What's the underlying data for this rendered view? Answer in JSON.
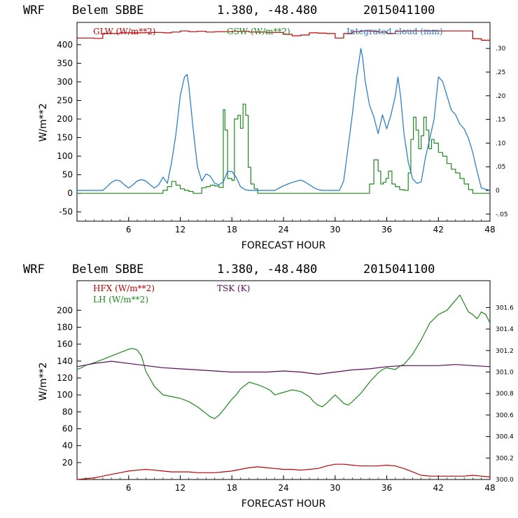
{
  "charts": [
    {
      "title_model": "WRF",
      "title_station": "Belem SBBE",
      "title_coords": "1.380, -48.480",
      "title_date": "2015041100",
      "legend": [
        {
          "label": "GLW (W/m**2)",
          "color": "#c00000"
        },
        {
          "label": "GSW (W/m**2)",
          "color": "#1f8a1f"
        },
        {
          "label": "Integrated cloud (mm)",
          "color": "#1e78d0"
        }
      ],
      "ylabel": "W/m**2",
      "xlabel": "FORECAST HOUR",
      "x_ticks": [
        "6",
        "12",
        "18",
        "24",
        "30",
        "36",
        "42",
        "48"
      ],
      "y_ticks": [
        "-50",
        "0",
        "50",
        "100",
        "150",
        "200",
        "250",
        "300",
        "350",
        "400"
      ],
      "y2_ticks": [
        "-.05",
        "0",
        ".05",
        ".10",
        ".15",
        ".20",
        ".25",
        ".30"
      ]
    },
    {
      "title_model": "WRF",
      "title_station": "Belem SBBE",
      "title_coords": "1.380, -48.480",
      "title_date": "2015041100",
      "legend": [
        {
          "label": "HFX (W/m**2)",
          "color": "#c00000"
        },
        {
          "label": "LH  (W/m**2)",
          "color": "#1f8a1f"
        },
        {
          "label": "TSK (K)",
          "color": "#5a0a5a"
        }
      ],
      "ylabel": "W/m**2",
      "xlabel": "FORECAST HOUR",
      "x_ticks": [
        "6",
        "12",
        "18",
        "24",
        "30",
        "36",
        "42",
        "48"
      ],
      "y_ticks": [
        "20",
        "40",
        "60",
        "80",
        "100",
        "120",
        "140",
        "160",
        "180",
        "200"
      ],
      "y2_ticks": [
        "300.0",
        "300.2",
        "300.4",
        "300.6",
        "300.8",
        "301.0",
        "301.2",
        "301.4",
        "301.6"
      ]
    }
  ],
  "chart_data": [
    {
      "type": "line",
      "title": "WRF Belem SBBE 1.380, -48.480 2015041100",
      "xlabel": "FORECAST HOUR",
      "ylabel": "W/m**2",
      "xlim": [
        0,
        48
      ],
      "ylim": [
        -75,
        460
      ],
      "y2lim": [
        -0.065,
        0.355
      ],
      "series": [
        {
          "name": "GLW (W/m**2)",
          "axis": "left",
          "color": "#c00000",
          "step": true,
          "x": [
            0,
            1,
            2,
            3,
            5,
            8,
            10,
            11,
            12,
            13,
            14,
            15,
            16,
            18,
            20,
            22,
            24,
            25,
            26,
            27,
            28,
            29,
            30,
            31,
            32,
            33,
            34,
            35,
            36,
            37,
            38,
            39,
            40,
            42,
            44,
            45,
            46,
            47,
            48
          ],
          "y": [
            418,
            418,
            417,
            430,
            432,
            433,
            432,
            434,
            437,
            435,
            436,
            434,
            435,
            436,
            434,
            433,
            428,
            424,
            426,
            432,
            431,
            430,
            418,
            430,
            435,
            437,
            436,
            434,
            430,
            436,
            437,
            437,
            437,
            437,
            437,
            437,
            416,
            412,
            411
          ]
        },
        {
          "name": "GSW (W/m**2)",
          "axis": "left",
          "color": "#1f8a1f",
          "step": true,
          "x": [
            0,
            9.5,
            10,
            10.5,
            11,
            11.5,
            12,
            12.5,
            13,
            13.5,
            14,
            14.5,
            15,
            15.5,
            16,
            16.5,
            17,
            17.2,
            17.5,
            18,
            18.3,
            18.7,
            19,
            19.3,
            19.6,
            19.9,
            20.2,
            20.6,
            21,
            21.5,
            33,
            33.5,
            34,
            34.5,
            35,
            35.3,
            35.6,
            35.9,
            36.2,
            36.6,
            37,
            37.5,
            38,
            38.5,
            38.8,
            39.1,
            39.4,
            39.7,
            40,
            40.3,
            40.6,
            40.9,
            41.2,
            41.5,
            42,
            42.5,
            43,
            43.5,
            44,
            44.5,
            45,
            45.5,
            46,
            48
          ],
          "y": [
            0,
            0,
            8,
            18,
            32,
            22,
            12,
            8,
            5,
            0,
            0,
            15,
            18,
            22,
            20,
            16,
            225,
            170,
            40,
            35,
            200,
            210,
            175,
            240,
            210,
            70,
            25,
            12,
            0,
            0,
            0,
            0,
            25,
            90,
            60,
            25,
            30,
            40,
            60,
            25,
            18,
            10,
            8,
            55,
            145,
            205,
            170,
            120,
            155,
            205,
            170,
            120,
            145,
            135,
            110,
            100,
            80,
            65,
            55,
            40,
            25,
            10,
            0,
            0
          ]
        },
        {
          "name": "Integrated cloud (mm)",
          "axis": "right",
          "color": "#1e78d0",
          "step": false,
          "x": [
            0,
            1,
            2,
            2.5,
            3,
            3.5,
            4,
            4.5,
            5,
            5.5,
            6,
            6.5,
            7,
            7.5,
            8,
            8.5,
            9,
            9.5,
            10,
            10.5,
            11,
            11.5,
            12,
            12.5,
            12.8,
            13,
            13.5,
            14,
            14.5,
            15,
            15.5,
            16,
            16.5,
            17,
            17.5,
            18,
            18.5,
            19,
            19.5,
            20,
            21,
            22,
            23,
            24,
            25,
            26,
            26.5,
            27,
            27.5,
            28,
            28.5,
            29,
            30,
            30.5,
            31,
            31.5,
            32,
            32.5,
            33,
            33.2,
            33.5,
            34,
            34.5,
            35,
            35.5,
            36,
            36.5,
            37,
            37.3,
            37.6,
            38,
            38.5,
            39,
            39.5,
            40,
            40.5,
            41,
            41.5,
            42,
            42.5,
            43,
            43.5,
            44,
            44.5,
            45,
            45.5,
            46,
            46.5,
            47,
            48
          ],
          "y": [
            0,
            0,
            0,
            0,
            0,
            0.008,
            0.017,
            0.022,
            0.02,
            0.012,
            0.005,
            0.012,
            0.02,
            0.023,
            0.02,
            0.012,
            0.005,
            0.012,
            0.028,
            0.015,
            0.06,
            0.12,
            0.2,
            0.24,
            0.245,
            0.22,
            0.13,
            0.05,
            0.02,
            0.035,
            0.03,
            0.015,
            0.012,
            0.018,
            0.04,
            0.04,
            0.028,
            0.008,
            0.002,
            0,
            0,
            0,
            0,
            0.01,
            0.017,
            0.022,
            0.018,
            0.012,
            0.006,
            0.002,
            0,
            0,
            0,
            0,
            0.02,
            0.09,
            0.16,
            0.24,
            0.3,
            0.28,
            0.23,
            0.18,
            0.155,
            0.12,
            0.16,
            0.13,
            0.16,
            0.2,
            0.24,
            0.2,
            0.12,
            0.06,
            0.025,
            0.015,
            0.018,
            0.07,
            0.11,
            0.15,
            0.24,
            0.23,
            0.2,
            0.17,
            0.16,
            0.14,
            0.13,
            0.11,
            0.08,
            0.04,
            0.005,
            0
          ]
        }
      ]
    },
    {
      "type": "line",
      "title": "WRF Belem SBBE 1.380, -48.480 2015041100",
      "xlabel": "FORECAST HOUR",
      "ylabel": "W/m**2",
      "xlim": [
        0,
        48
      ],
      "ylim": [
        0,
        235
      ],
      "y2lim": [
        300.0,
        301.85
      ],
      "series": [
        {
          "name": "HFX (W/m**2)",
          "axis": "left",
          "color": "#c00000",
          "x": [
            0,
            1,
            2,
            3,
            4,
            5,
            6,
            7,
            8,
            9,
            10,
            11,
            12,
            13,
            14,
            15,
            16,
            17,
            18,
            19,
            20,
            21,
            22,
            23,
            24,
            25,
            26,
            27,
            28,
            29,
            30,
            31,
            32,
            33,
            34,
            35,
            36,
            37,
            38,
            39,
            40,
            41,
            42,
            43,
            44,
            45,
            46,
            47,
            48
          ],
          "y": [
            0,
            1,
            2,
            4,
            6,
            8,
            10,
            11,
            12,
            11,
            10,
            9,
            9,
            9,
            8,
            8,
            8,
            9,
            10,
            12,
            14,
            15,
            14,
            13,
            12,
            12,
            11,
            12,
            13,
            16,
            18,
            18,
            17,
            16,
            16,
            16,
            17,
            16,
            13,
            9,
            5,
            4,
            4,
            4,
            4,
            4,
            5,
            4,
            3
          ]
        },
        {
          "name": "LH  (W/m**2)",
          "axis": "left",
          "color": "#1f8a1f",
          "x": [
            0,
            0.5,
            1,
            2,
            3,
            4,
            5,
            6,
            6.5,
            7,
            7.5,
            8,
            9,
            10,
            11,
            12,
            13,
            14,
            14.5,
            15,
            15.5,
            16,
            16.5,
            17,
            18,
            18.5,
            19,
            20,
            21,
            22,
            22.5,
            23,
            24,
            25,
            26,
            27,
            27.5,
            28,
            28.5,
            29,
            30,
            31,
            31.5,
            32,
            33,
            34,
            35,
            35.5,
            36,
            37,
            37.5,
            38,
            39,
            40,
            41,
            42,
            43,
            44,
            44.5,
            45,
            45.5,
            46,
            46.5,
            47,
            47.5,
            48
          ],
          "y": [
            130,
            132,
            135,
            138,
            142,
            146,
            150,
            154,
            155,
            153,
            146,
            128,
            110,
            100,
            98,
            96,
            92,
            86,
            82,
            78,
            74,
            72,
            76,
            82,
            95,
            100,
            107,
            115,
            112,
            108,
            105,
            100,
            103,
            106,
            104,
            98,
            92,
            88,
            86,
            90,
            100,
            90,
            88,
            92,
            102,
            115,
            126,
            130,
            132,
            130,
            134,
            136,
            148,
            165,
            185,
            195,
            200,
            212,
            218,
            208,
            198,
            195,
            190,
            198,
            195,
            185
          ]
        },
        {
          "name": "TSK (K)",
          "axis": "right",
          "color": "#5a0a5a",
          "x": [
            0,
            2,
            4,
            6,
            8,
            10,
            12,
            14,
            16,
            18,
            20,
            22,
            24,
            26,
            28,
            30,
            32,
            34,
            36,
            38,
            40,
            42,
            44,
            46,
            48
          ],
          "y": [
            301.05,
            301.08,
            301.1,
            301.08,
            301.06,
            301.04,
            301.03,
            301.02,
            301.01,
            301.0,
            301.0,
            301.0,
            301.01,
            301.0,
            300.98,
            301.0,
            301.02,
            301.03,
            301.05,
            301.06,
            301.06,
            301.06,
            301.07,
            301.06,
            301.05
          ]
        }
      ]
    }
  ]
}
